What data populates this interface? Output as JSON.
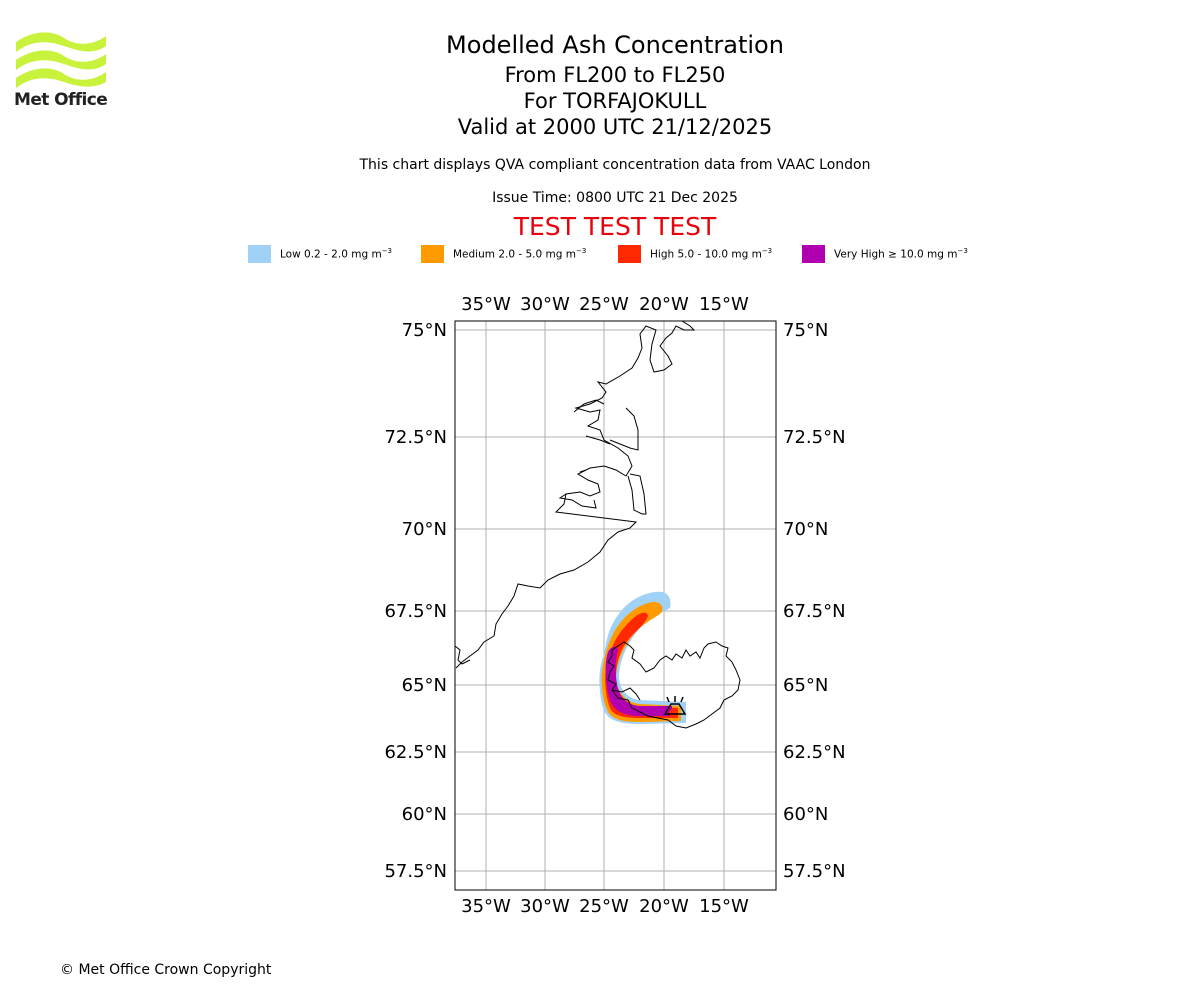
{
  "header": {
    "logo_text": "Met Office",
    "title": "Modelled Ash Concentration",
    "level_range": "From FL200 to FL250",
    "volcano": "For TORFAJOKULL",
    "valid_time": "Valid at 2000 UTC 21/12/2025",
    "qva_note": "This chart displays QVA compliant concentration data from VAAC London",
    "issue_time": "Issue Time: 0800 UTC 21 Dec 2025",
    "test_banner": "TEST TEST TEST"
  },
  "legend": [
    {
      "label": "Low 0.2 - 2.0 mg m",
      "exponent": "−3",
      "color": "#a0d2f8"
    },
    {
      "label": "Medium 2.0 - 5.0 mg m",
      "exponent": "−3",
      "color": "#ff9a00"
    },
    {
      "label": "High 5.0 - 10.0 mg m",
      "exponent": "−3",
      "color": "#ff2800"
    },
    {
      "label": "Very High ≥ 10.0 mg m",
      "exponent": "−3",
      "color": "#b000b0"
    }
  ],
  "map": {
    "lon_ticks": [
      "35°W",
      "30°W",
      "25°W",
      "20°W",
      "15°W"
    ],
    "lat_ticks": [
      "75°N",
      "72.5°N",
      "70°N",
      "67.5°N",
      "65°N",
      "62.5°N",
      "60°N",
      "57.5°N"
    ],
    "gridlines": true,
    "volcano_symbol": "volcano-icon"
  },
  "footer": {
    "copyright": "© Met Office Crown Copyright"
  },
  "colors": {
    "logo_green": "#c8f23c",
    "test_red": "#e8000b",
    "grid": "#b0b0b0"
  }
}
